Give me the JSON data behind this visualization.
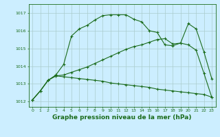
{
  "bg_color": "#cceeff",
  "grid_color": "#aacccc",
  "line_color": "#1a6b1a",
  "marker": "+",
  "markersize": 3,
  "linewidth": 0.8,
  "title": "Graphe pression niveau de la mer (hPa)",
  "title_fontsize": 6.5,
  "xlim": [
    -0.5,
    23.5
  ],
  "ylim": [
    1011.7,
    1017.5
  ],
  "yticks": [
    1012,
    1013,
    1014,
    1015,
    1016,
    1017
  ],
  "xticks": [
    0,
    1,
    2,
    3,
    4,
    5,
    6,
    7,
    8,
    9,
    10,
    11,
    12,
    13,
    14,
    15,
    16,
    17,
    18,
    19,
    20,
    21,
    22,
    23
  ],
  "line1_x": [
    0,
    1,
    2,
    3,
    4,
    5,
    6,
    7,
    8,
    9,
    10,
    11,
    12,
    13,
    14,
    15,
    16,
    17,
    18,
    19,
    20,
    21,
    22,
    23
  ],
  "line1_y": [
    1012.1,
    1012.6,
    1013.2,
    1013.5,
    1014.1,
    1015.7,
    1016.1,
    1016.3,
    1016.6,
    1016.85,
    1016.9,
    1016.9,
    1016.9,
    1016.65,
    1016.5,
    1016.0,
    1015.9,
    1015.2,
    1015.15,
    1015.3,
    1016.4,
    1016.1,
    1014.8,
    1013.3
  ],
  "line2_x": [
    0,
    1,
    2,
    3,
    4,
    5,
    6,
    7,
    8,
    9,
    10,
    11,
    12,
    13,
    14,
    15,
    16,
    17,
    18,
    19,
    20,
    21,
    22,
    23
  ],
  "line2_y": [
    1012.1,
    1012.6,
    1013.2,
    1013.45,
    1013.4,
    1013.35,
    1013.3,
    1013.25,
    1013.2,
    1013.15,
    1013.05,
    1013.0,
    1012.95,
    1012.9,
    1012.85,
    1012.8,
    1012.7,
    1012.65,
    1012.6,
    1012.55,
    1012.5,
    1012.45,
    1012.4,
    1012.25
  ],
  "line3_x": [
    0,
    1,
    2,
    3,
    4,
    5,
    6,
    7,
    8,
    9,
    10,
    11,
    12,
    13,
    14,
    15,
    16,
    17,
    18,
    19,
    20,
    21,
    22,
    23
  ],
  "line3_y": [
    1012.1,
    1012.6,
    1013.2,
    1013.45,
    1013.5,
    1013.65,
    1013.8,
    1013.95,
    1014.15,
    1014.35,
    1014.55,
    1014.75,
    1014.95,
    1015.1,
    1015.2,
    1015.35,
    1015.5,
    1015.55,
    1015.25,
    1015.3,
    1015.2,
    1014.9,
    1013.6,
    1012.25
  ]
}
